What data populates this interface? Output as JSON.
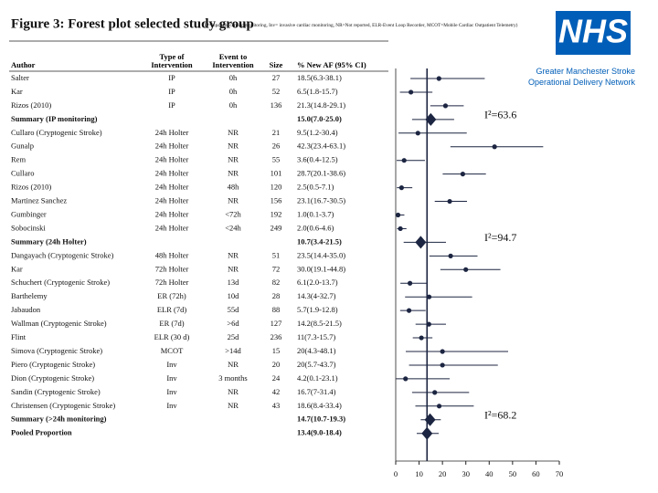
{
  "header": {
    "title": "Figure 3: Forest plot selected study group",
    "subtitle": "(IP=inpatient cardiac monitoring, Inv= invasive cardiac monitoring, NR=Not reported, ELR-Event Loop Recorder, MCOT=Mobile Cardiac Outpatient Telemetry)"
  },
  "logo": {
    "text": "NHS",
    "org": "Greater Manchester Stroke Operational Delivery Network"
  },
  "chart_data": {
    "type": "forest",
    "color": "#1c2541",
    "columns": {
      "author": "Author",
      "intervention": "Type of Intervention",
      "event": "Event to Intervention",
      "size": "Size",
      "estimate": "% New AF (95% CI)"
    },
    "xlim": [
      0,
      70
    ],
    "xticks": [
      0,
      10,
      20,
      30,
      40,
      50,
      60,
      70
    ],
    "rows": [
      {
        "author": "Salter",
        "intervention": "IP",
        "event": "0h",
        "size": "27",
        "label": "18.5(6.3-38.1)",
        "estimate": 18.5,
        "lower": 6.3,
        "upper": 38.1
      },
      {
        "author": "Kar",
        "intervention": "IP",
        "event": "0h",
        "size": "52",
        "label": "6.5(1.8-15.7)",
        "estimate": 6.5,
        "lower": 1.8,
        "upper": 15.7
      },
      {
        "author": "Rizos (2010)",
        "intervention": "IP",
        "event": "0h",
        "size": "136",
        "label": "21.3(14.8-29.1)",
        "estimate": 21.3,
        "lower": 14.8,
        "upper": 29.1
      },
      {
        "author": "Summary (IP monitoring)",
        "summary": true,
        "label": "15.0(7.0-25.0)",
        "estimate": 15.0,
        "lower": 7.0,
        "upper": 25.0,
        "i2": "I²=63.6"
      },
      {
        "author": "Cullaro (Cryptogenic Stroke)",
        "intervention": "24h Holter",
        "event": "NR",
        "size": "21",
        "label": "9.5(1.2-30.4)",
        "estimate": 9.5,
        "lower": 1.2,
        "upper": 30.4
      },
      {
        "author": "Gunalp",
        "intervention": "24h Holter",
        "event": "NR",
        "size": "26",
        "label": "42.3(23.4-63.1)",
        "estimate": 42.3,
        "lower": 23.4,
        "upper": 63.1
      },
      {
        "author": "Rem",
        "intervention": "24h Holter",
        "event": "NR",
        "size": "55",
        "label": "3.6(0.4-12.5)",
        "estimate": 3.6,
        "lower": 0.4,
        "upper": 12.5
      },
      {
        "author": "Cullaro",
        "intervention": "24h Holter",
        "event": "NR",
        "size": "101",
        "label": "28.7(20.1-38.6)",
        "estimate": 28.7,
        "lower": 20.1,
        "upper": 38.6
      },
      {
        "author": "Rizos (2010)",
        "intervention": "24h Holter",
        "event": "48h",
        "size": "120",
        "label": "2.5(0.5-7.1)",
        "estimate": 2.5,
        "lower": 0.5,
        "upper": 7.1
      },
      {
        "author": "Martinez Sanchez",
        "intervention": "24h Holter",
        "event": "NR",
        "size": "156",
        "label": "23.1(16.7-30.5)",
        "estimate": 23.1,
        "lower": 16.7,
        "upper": 30.5
      },
      {
        "author": "Gumbinger",
        "intervention": "24h Holter",
        "event": "<72h",
        "size": "192",
        "label": "1.0(0.1-3.7)",
        "estimate": 1.0,
        "lower": 0.1,
        "upper": 3.7
      },
      {
        "author": "Sobocinski",
        "intervention": "24h Holter",
        "event": "<24h",
        "size": "249",
        "label": "2.0(0.6-4.6)",
        "estimate": 2.0,
        "lower": 0.6,
        "upper": 4.6
      },
      {
        "author": "Summary (24h Holter)",
        "summary": true,
        "label": "10.7(3.4-21.5)",
        "estimate": 10.7,
        "lower": 3.4,
        "upper": 21.5,
        "i2": "I²=94.7"
      },
      {
        "author": "Dangayach (Cryptogenic Stroke)",
        "intervention": "48h Holter",
        "event": "NR",
        "size": "51",
        "label": "23.5(14.4-35.0)",
        "estimate": 23.5,
        "lower": 14.4,
        "upper": 35.0
      },
      {
        "author": "Kar",
        "intervention": "72h Holter",
        "event": "NR",
        "size": "72",
        "label": "30.0(19.1-44.8)",
        "estimate": 30.0,
        "lower": 19.1,
        "upper": 44.8
      },
      {
        "author": "Schuchert (Cryptogenic Stroke)",
        "intervention": "72h Holter",
        "event": "13d",
        "size": "82",
        "label": "6.1(2.0-13.7)",
        "estimate": 6.1,
        "lower": 2.0,
        "upper": 13.7
      },
      {
        "author": "Barthelemy",
        "intervention": "ER (72h)",
        "event": "10d",
        "size": "28",
        "label": "14.3(4-32.7)",
        "estimate": 14.3,
        "lower": 4,
        "upper": 32.7
      },
      {
        "author": "Jabaudon",
        "intervention": "ELR (7d)",
        "event": "55d",
        "size": "88",
        "label": "5.7(1.9-12.8)",
        "estimate": 5.7,
        "lower": 1.9,
        "upper": 12.8
      },
      {
        "author": "Wallman (Cryptogenic Stroke)",
        "intervention": "ER (7d)",
        "event": ">6d",
        "size": "127",
        "label": "14.2(8.5-21.5)",
        "estimate": 14.2,
        "lower": 8.5,
        "upper": 21.5
      },
      {
        "author": "Flint",
        "intervention": "ELR (30 d)",
        "event": "25d",
        "size": "236",
        "label": "11(7.3-15.7)",
        "estimate": 11,
        "lower": 7.3,
        "upper": 15.7
      },
      {
        "author": "Simova (Cryptogenic Stroke)",
        "intervention": "MCOT",
        "event": ">14d",
        "size": "15",
        "label": "20(4.3-48.1)",
        "estimate": 20,
        "lower": 4.3,
        "upper": 48.1
      },
      {
        "author": "Piero (Cryptogenic Stroke)",
        "intervention": "Inv",
        "event": "NR",
        "size": "20",
        "label": "20(5.7-43.7)",
        "estimate": 20,
        "lower": 5.7,
        "upper": 43.7
      },
      {
        "author": "Dion (Cryptogenic Stroke)",
        "intervention": "Inv",
        "event": "3 months",
        "size": "24",
        "label": "4.2(0.1-23.1)",
        "estimate": 4.2,
        "lower": 0.1,
        "upper": 23.1
      },
      {
        "author": "Sandin (Cryptogenic Stroke)",
        "intervention": "Inv",
        "event": "NR",
        "size": "42",
        "label": "16.7(7-31.4)",
        "estimate": 16.7,
        "lower": 7,
        "upper": 31.4
      },
      {
        "author": "Christensen (Cryptogenic Stroke)",
        "intervention": "Inv",
        "event": "NR",
        "size": "43",
        "label": "18.6(8.4-33.4)",
        "estimate": 18.6,
        "lower": 8.4,
        "upper": 33.4
      },
      {
        "author": "Summary (>24h monitoring)",
        "summary": true,
        "label": "14.7(10.7-19.3)",
        "estimate": 14.7,
        "lower": 10.7,
        "upper": 19.3,
        "i2": "I²=68.2"
      },
      {
        "author": "Pooled Proportion",
        "summary": true,
        "reference": true,
        "label": "13.4(9.0-18.4)",
        "estimate": 13.4,
        "lower": 9.0,
        "upper": 18.4
      }
    ]
  }
}
